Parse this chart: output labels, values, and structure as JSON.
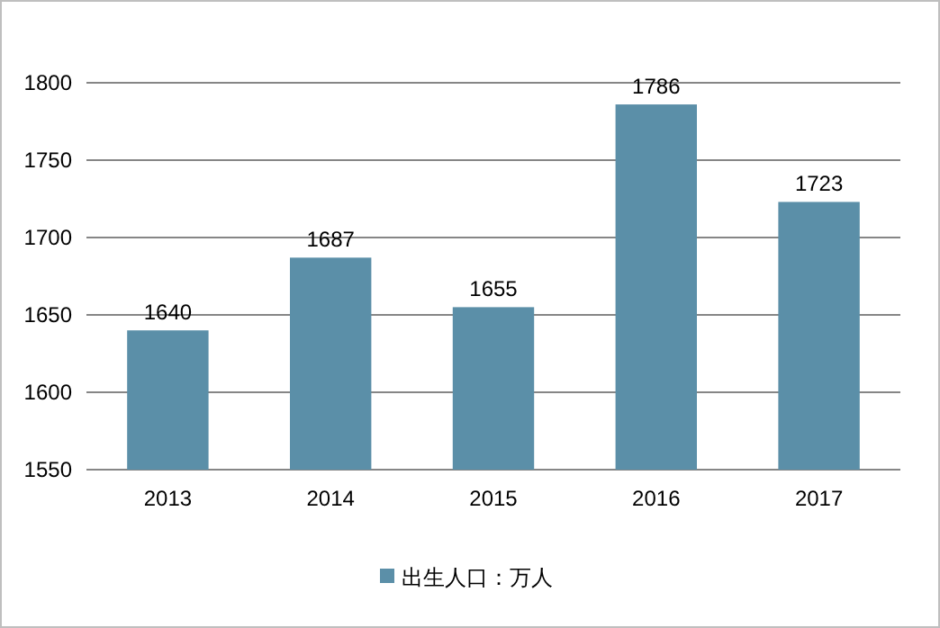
{
  "chart_data": {
    "type": "bar",
    "categories": [
      "2013",
      "2014",
      "2015",
      "2016",
      "2017"
    ],
    "series": [
      {
        "name": "出生人口：万人",
        "color": "#5b8fa8",
        "values": [
          1640,
          1687,
          1655,
          1786,
          1723
        ]
      }
    ],
    "ylim": [
      1550,
      1800
    ],
    "yticks": [
      1550,
      1600,
      1650,
      1700,
      1750,
      1800
    ],
    "grid": "y",
    "legend": "bottom",
    "data_labels": true
  }
}
